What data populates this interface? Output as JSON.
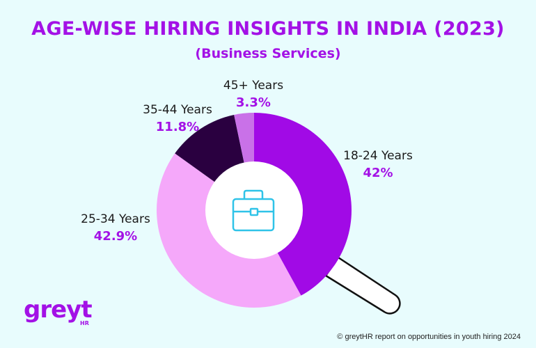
{
  "chart_data": {
    "type": "donut",
    "title": "AGE-WISE HIRING INSIGHTS IN INDIA (2023)",
    "subtitle": "(Business Services)",
    "categories": [
      "18-24 Years",
      "25-34 Years",
      "35-44 Years",
      "45+ Years"
    ],
    "values": [
      42,
      42.9,
      11.8,
      3.3
    ],
    "value_labels": [
      "42%",
      "42.9%",
      "11.8%",
      "3.3%"
    ],
    "colors": [
      "#a10ae6",
      "#f5a8fa",
      "#2a0040",
      "#c971e8"
    ],
    "center_icon": "briefcase-icon",
    "decoration": "magnifying-glass-handle"
  },
  "brand": {
    "logo_text": "greyt",
    "logo_sub": "HR"
  },
  "footer": {
    "source": "© greytHR report on opportunities in youth hiring 2024"
  },
  "colors": {
    "accent": "#a311e6",
    "background": "#e8fcfd",
    "icon": "#2fc3e8"
  }
}
